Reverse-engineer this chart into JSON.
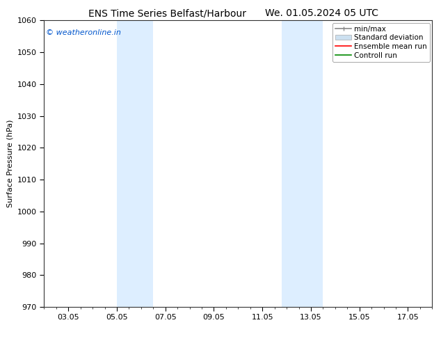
{
  "title_left": "ENS Time Series Belfast/Harbour",
  "title_right": "We. 01.05.2024 05 UTC",
  "ylabel": "Surface Pressure (hPa)",
  "ylim": [
    970,
    1060
  ],
  "yticks": [
    970,
    980,
    990,
    1000,
    1010,
    1020,
    1030,
    1040,
    1050,
    1060
  ],
  "xtick_labels": [
    "03.05",
    "05.05",
    "07.05",
    "09.05",
    "11.05",
    "13.05",
    "15.05",
    "17.05"
  ],
  "xtick_positions": [
    2,
    4,
    6,
    8,
    10,
    12,
    14,
    16
  ],
  "xlim": [
    1,
    17
  ],
  "watermark": "© weatheronline.in",
  "watermark_color": "#0055cc",
  "bg_color": "#ffffff",
  "plot_bg_color": "#ffffff",
  "shaded_bands": [
    {
      "x_start": 4.0,
      "x_end": 5.5,
      "color": "#ddeeff"
    },
    {
      "x_start": 10.8,
      "x_end": 12.5,
      "color": "#ddeeff"
    }
  ],
  "legend_entries": [
    {
      "label": "min/max",
      "color": "#aaaaaa",
      "type": "errorbar"
    },
    {
      "label": "Standard deviation",
      "color": "#cce0f0",
      "type": "patch"
    },
    {
      "label": "Ensemble mean run",
      "color": "#ff0000",
      "type": "line"
    },
    {
      "label": "Controll run",
      "color": "#008800",
      "type": "line"
    }
  ],
  "title_fontsize": 10,
  "axis_label_fontsize": 8,
  "tick_fontsize": 8,
  "watermark_fontsize": 8,
  "legend_fontsize": 7.5
}
